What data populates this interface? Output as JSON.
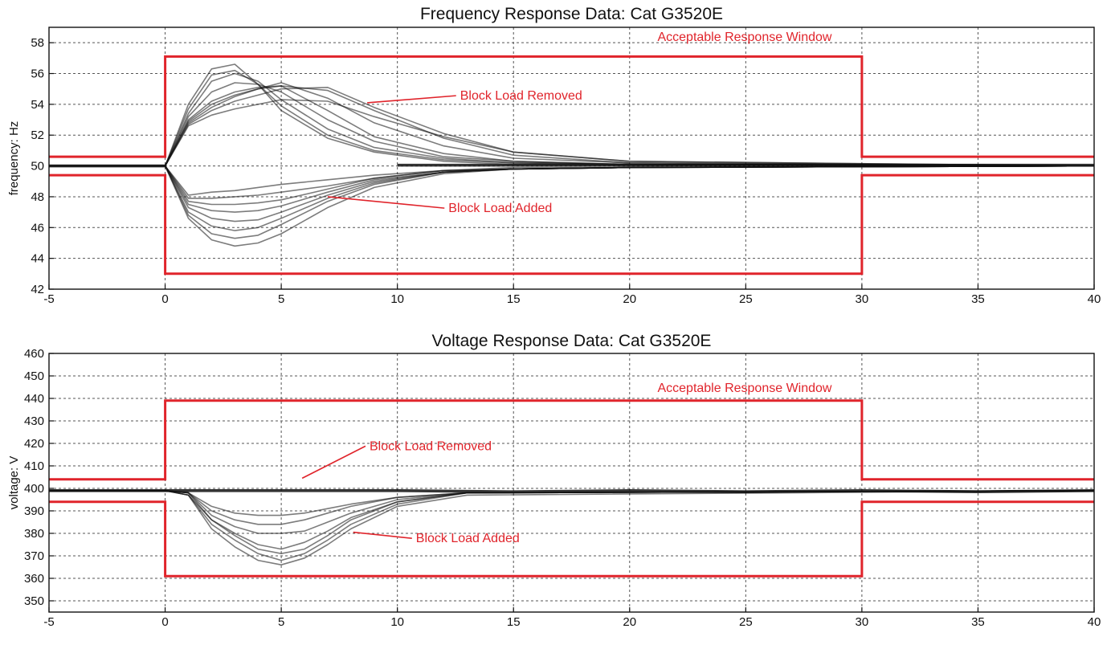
{
  "accent": "#e0242b",
  "trace_color": "#111111",
  "chart_data": [
    {
      "type": "line",
      "title": "Frequency Response Data: Cat G3520E",
      "xlabel": "",
      "ylabel": "frequency: Hz",
      "xlim": [
        -5,
        40
      ],
      "ylim": [
        42,
        59
      ],
      "xticks": [
        -5,
        0,
        5,
        10,
        15,
        20,
        25,
        30,
        35,
        40
      ],
      "yticks": [
        42,
        44,
        46,
        48,
        50,
        52,
        54,
        56,
        58
      ],
      "grid": true,
      "acceptable_window": {
        "label": "Acceptable Response Window",
        "upper": {
          "x": [
            -5,
            0,
            0,
            30,
            30,
            40
          ],
          "y": [
            50.6,
            50.6,
            57.1,
            57.1,
            50.6,
            50.6
          ]
        },
        "lower": {
          "x": [
            -5,
            0,
            0,
            30,
            30,
            40
          ],
          "y": [
            49.4,
            49.4,
            43.0,
            43.0,
            49.4,
            49.4
          ]
        }
      },
      "annotations": [
        {
          "text": "Block Load Removed",
          "x": 12.7,
          "y": 54.3,
          "arrow_to": [
            8.7,
            54.1
          ]
        },
        {
          "text": "Block Load Added",
          "x": 12.2,
          "y": 47.0,
          "arrow_to": [
            7.0,
            48.0
          ]
        }
      ],
      "series": [
        {
          "group": "removed",
          "x": [
            -5,
            0,
            1,
            2,
            3,
            4,
            5,
            7,
            9,
            12,
            15,
            20,
            40
          ],
          "y": [
            50,
            50,
            54.0,
            56.3,
            56.6,
            55.3,
            53.6,
            51.8,
            50.9,
            50.3,
            50.1,
            50.1,
            50.0
          ]
        },
        {
          "group": "removed",
          "x": [
            -5,
            0,
            1,
            2,
            3,
            4,
            5,
            7,
            9,
            12,
            15,
            20,
            40
          ],
          "y": [
            50,
            50,
            53.7,
            55.9,
            56.2,
            55.3,
            53.9,
            52.0,
            51.0,
            50.4,
            50.2,
            50.1,
            50.0
          ]
        },
        {
          "group": "removed",
          "x": [
            -5,
            0,
            1,
            2,
            3,
            4,
            5,
            7,
            9,
            12,
            15,
            20,
            40
          ],
          "y": [
            50,
            50,
            53.4,
            55.5,
            56.0,
            55.5,
            54.3,
            52.4,
            51.2,
            50.5,
            50.2,
            50.1,
            50.0
          ]
        },
        {
          "group": "removed",
          "x": [
            -5,
            0,
            1,
            2,
            3,
            4,
            5,
            7,
            9,
            12,
            15,
            20,
            40
          ],
          "y": [
            50,
            50,
            53.2,
            54.8,
            55.4,
            55.3,
            54.8,
            53.0,
            51.6,
            50.6,
            50.3,
            50.1,
            50.0
          ]
        },
        {
          "group": "removed",
          "x": [
            -5,
            0,
            1,
            2,
            3,
            4,
            5,
            7,
            9,
            12,
            15,
            20,
            40
          ],
          "y": [
            50,
            50,
            53.0,
            54.2,
            54.8,
            55.1,
            55.2,
            53.6,
            51.9,
            50.8,
            50.3,
            50.1,
            50.0
          ]
        },
        {
          "group": "removed",
          "x": [
            -5,
            0,
            1,
            2,
            3,
            4,
            5,
            7,
            9,
            12,
            15,
            20,
            40
          ],
          "y": [
            50,
            50,
            52.8,
            53.8,
            54.5,
            55.0,
            55.4,
            54.4,
            52.8,
            51.3,
            50.5,
            50.2,
            50.0
          ]
        },
        {
          "group": "removed",
          "x": [
            -5,
            0,
            1,
            2,
            3,
            4,
            5,
            7,
            9,
            12,
            15,
            20,
            40
          ],
          "y": [
            50,
            50,
            52.9,
            54.0,
            54.6,
            55.0,
            55.2,
            54.9,
            53.6,
            51.8,
            50.7,
            50.2,
            50.0
          ]
        },
        {
          "group": "removed",
          "x": [
            -5,
            0,
            1,
            2,
            3,
            4,
            5,
            7,
            9,
            12,
            15,
            20,
            40
          ],
          "y": [
            50,
            50,
            52.7,
            53.6,
            54.2,
            54.6,
            55.0,
            55.1,
            53.8,
            52.1,
            50.9,
            50.3,
            50.0
          ]
        },
        {
          "group": "removed",
          "x": [
            -5,
            0,
            1,
            2,
            3,
            4,
            5,
            7,
            9,
            12,
            15,
            20,
            40
          ],
          "y": [
            50,
            50,
            52.6,
            53.3,
            53.7,
            54.0,
            54.3,
            54.2,
            53.2,
            51.9,
            50.9,
            50.3,
            50.0
          ]
        },
        {
          "group": "added",
          "x": [
            -5,
            0,
            1,
            2,
            3,
            4,
            5,
            7,
            9,
            12,
            15,
            20,
            40
          ],
          "y": [
            50,
            50,
            46.6,
            45.2,
            44.8,
            45.0,
            45.6,
            47.3,
            48.6,
            49.5,
            49.8,
            49.9,
            50.0
          ]
        },
        {
          "group": "added",
          "x": [
            -5,
            0,
            1,
            2,
            3,
            4,
            5,
            7,
            9,
            12,
            15,
            20,
            40
          ],
          "y": [
            50,
            50,
            46.8,
            45.6,
            45.3,
            45.5,
            46.2,
            47.7,
            48.8,
            49.6,
            49.8,
            49.9,
            50.0
          ]
        },
        {
          "group": "added",
          "x": [
            -5,
            0,
            1,
            2,
            3,
            4,
            5,
            7,
            9,
            12,
            15,
            20,
            40
          ],
          "y": [
            50,
            50,
            47.0,
            46.1,
            45.8,
            46.0,
            46.6,
            47.9,
            48.9,
            49.6,
            49.8,
            49.9,
            50.0
          ]
        },
        {
          "group": "added",
          "x": [
            -5,
            0,
            1,
            2,
            3,
            4,
            5,
            7,
            9,
            12,
            15,
            20,
            40
          ],
          "y": [
            50,
            50,
            47.3,
            46.6,
            46.4,
            46.5,
            47.0,
            48.1,
            49.0,
            49.6,
            49.8,
            49.9,
            50.0
          ]
        },
        {
          "group": "added",
          "x": [
            -5,
            0,
            1,
            2,
            3,
            4,
            5,
            7,
            9,
            12,
            15,
            20,
            40
          ],
          "y": [
            50,
            50,
            47.5,
            47.1,
            47.0,
            47.1,
            47.4,
            48.3,
            49.1,
            49.6,
            49.8,
            49.9,
            50.0
          ]
        },
        {
          "group": "added",
          "x": [
            -5,
            0,
            1,
            2,
            3,
            4,
            5,
            7,
            9,
            12,
            15,
            20,
            40
          ],
          "y": [
            50,
            50,
            47.7,
            47.5,
            47.5,
            47.6,
            47.8,
            48.5,
            49.2,
            49.7,
            49.8,
            49.9,
            50.0
          ]
        },
        {
          "group": "added",
          "x": [
            -5,
            0,
            1,
            2,
            3,
            4,
            5,
            7,
            9,
            12,
            15,
            20,
            40
          ],
          "y": [
            50,
            50,
            47.9,
            47.9,
            48.0,
            48.1,
            48.3,
            48.7,
            49.2,
            49.7,
            49.8,
            49.9,
            50.0
          ]
        },
        {
          "group": "added",
          "x": [
            -5,
            0,
            1,
            2,
            3,
            4,
            5,
            7,
            9,
            12,
            15,
            20,
            40
          ],
          "y": [
            50,
            50,
            48.1,
            48.3,
            48.4,
            48.6,
            48.8,
            49.1,
            49.4,
            49.7,
            49.9,
            49.9,
            50.0
          ]
        }
      ]
    },
    {
      "type": "line",
      "title": "Voltage Response Data: Cat G3520E",
      "xlabel": "",
      "ylabel": "voltage: V",
      "xlim": [
        -5,
        40
      ],
      "ylim": [
        345,
        460
      ],
      "xticks": [
        -5,
        0,
        5,
        10,
        15,
        20,
        25,
        30,
        35,
        40
      ],
      "yticks": [
        350,
        360,
        370,
        380,
        390,
        400,
        410,
        420,
        430,
        440,
        450,
        460
      ],
      "grid": true,
      "acceptable_window": {
        "label": "Acceptable Response Window",
        "upper": {
          "x": [
            -5,
            0,
            0,
            30,
            30,
            40
          ],
          "y": [
            404,
            404,
            439,
            439,
            404,
            404
          ]
        },
        "lower": {
          "x": [
            -5,
            0,
            0,
            30,
            30,
            40
          ],
          "y": [
            394,
            394,
            361,
            361,
            394,
            394
          ]
        }
      },
      "annotations": [
        {
          "text": "Block Load Removed",
          "x": 8.8,
          "y": 417,
          "arrow_to": [
            5.9,
            404.5
          ]
        },
        {
          "text": "Block Load Added",
          "x": 10.8,
          "y": 376,
          "arrow_to": [
            8.1,
            380.5
          ]
        }
      ],
      "series": [
        {
          "group": "removed",
          "x": [
            -5,
            0,
            5,
            10,
            15,
            20,
            25,
            30,
            35,
            40
          ],
          "y": [
            399,
            399,
            399,
            399,
            398.5,
            399,
            398.5,
            399,
            398.5,
            399
          ]
        },
        {
          "group": "added",
          "x": [
            -5,
            0,
            1,
            2,
            3,
            4,
            5,
            6,
            7,
            8,
            10,
            13,
            40
          ],
          "y": [
            399,
            399,
            397,
            386,
            380,
            375,
            373,
            376,
            381,
            387,
            394,
            398,
            399
          ]
        },
        {
          "group": "added",
          "x": [
            -5,
            0,
            1,
            2,
            3,
            4,
            5,
            6,
            7,
            8,
            10,
            13,
            40
          ],
          "y": [
            399,
            399,
            397,
            384,
            377,
            371,
            368,
            371,
            377,
            384,
            393,
            398,
            399
          ]
        },
        {
          "group": "added",
          "x": [
            -5,
            0,
            1,
            2,
            3,
            4,
            5,
            6,
            7,
            8,
            10,
            13,
            40
          ],
          "y": [
            399,
            399,
            397,
            382,
            374,
            368,
            366,
            369,
            375,
            382,
            392,
            397,
            399
          ]
        },
        {
          "group": "added",
          "x": [
            -5,
            0,
            1,
            2,
            3,
            4,
            5,
            6,
            7,
            8,
            10,
            13,
            40
          ],
          "y": [
            399,
            399,
            398,
            388,
            383,
            380,
            380,
            381,
            385,
            389,
            395,
            398,
            399
          ]
        },
        {
          "group": "added",
          "x": [
            -5,
            0,
            1,
            2,
            3,
            4,
            5,
            6,
            7,
            8,
            10,
            13,
            40
          ],
          "y": [
            399,
            399,
            398,
            390,
            386,
            384,
            384,
            386,
            389,
            392,
            396,
            398,
            399
          ]
        },
        {
          "group": "added",
          "x": [
            -5,
            0,
            1,
            2,
            3,
            4,
            5,
            6,
            7,
            8,
            10,
            13,
            40
          ],
          "y": [
            399,
            399,
            398,
            392,
            389,
            388,
            388,
            389,
            391,
            393,
            396,
            398,
            399
          ]
        },
        {
          "group": "added",
          "x": [
            -5,
            0,
            1,
            2,
            3,
            4,
            5,
            6,
            7,
            8,
            10,
            13,
            40
          ],
          "y": [
            399,
            399,
            398,
            386,
            379,
            373,
            371,
            373,
            379,
            386,
            394,
            398,
            399
          ]
        }
      ]
    }
  ]
}
